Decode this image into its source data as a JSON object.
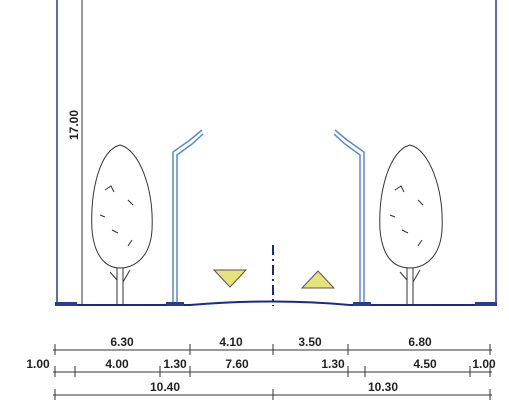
{
  "height_label": "17.00",
  "dimensions": [
    {
      "labels": [
        "6.30",
        "4.10",
        "3.50",
        "6.80"
      ]
    },
    {
      "labels": [
        "1.00",
        "4.00",
        "1.30",
        "7.60",
        "1.30",
        "4.50",
        "1.00"
      ]
    },
    {
      "labels": [
        "10.40",
        "10.30"
      ]
    }
  ]
}
